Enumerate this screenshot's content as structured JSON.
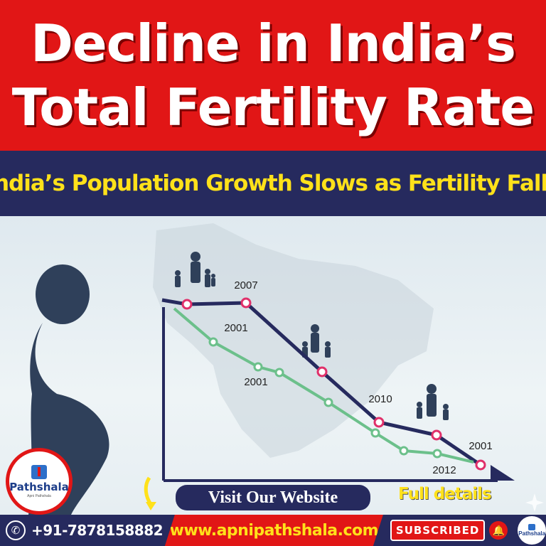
{
  "header": {
    "title_line1": "Decline in India’s",
    "title_line2": "Total Fertility Rate"
  },
  "subtitle": "India’s Population Growth Slows as Fertility Falls",
  "chart_data": {
    "type": "line",
    "title": "",
    "series": [
      {
        "name": "",
        "color": "#262a5e",
        "points": [
          1,
          2,
          3,
          4,
          5,
          6
        ],
        "labels": [
          "",
          "2007",
          "2001",
          "",
          "2010",
          "2001"
        ]
      },
      {
        "name": "",
        "color": "#6cc08b",
        "points": [
          1,
          2,
          3,
          4,
          5,
          6,
          7,
          8
        ],
        "labels": [
          "",
          "2001",
          "",
          "",
          "",
          "",
          "2012",
          ""
        ]
      }
    ]
  },
  "logo": {
    "brand": "Pathshala",
    "tagline": "Apni Pathshala"
  },
  "visit_label": "Visit Our Website",
  "full_details": "Full details",
  "footer": {
    "phone": "+91-7878158882",
    "website": "www.apnipathshala.com",
    "subscribe": "SUBSCRIBED"
  },
  "icons": {
    "phone": "phone-icon",
    "bell": "bell-icon",
    "hand": "hand-pointer-icon",
    "arrow": "curved-arrow-icon"
  },
  "colors": {
    "red": "#e11616",
    "navy": "#262a5e",
    "yellow": "#ffe11a",
    "green": "#6cc08b"
  }
}
